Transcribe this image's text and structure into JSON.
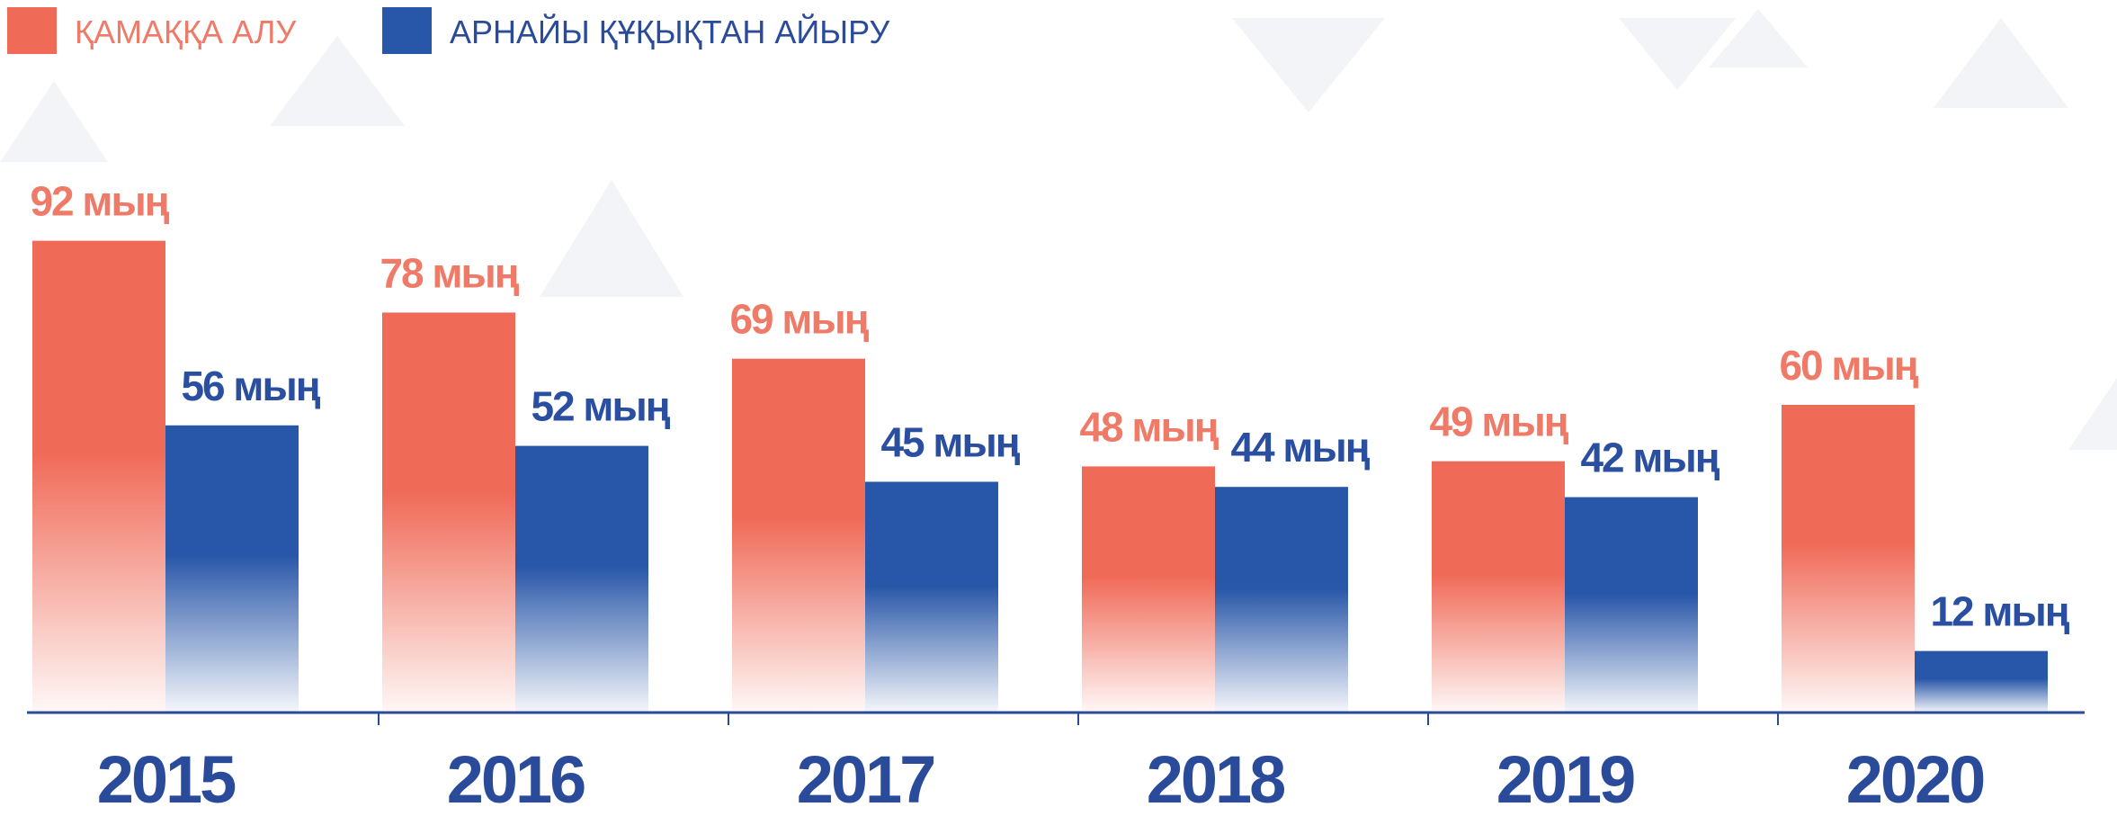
{
  "chart_data": {
    "type": "bar",
    "categories": [
      "2015",
      "2016",
      "2017",
      "2018",
      "2019",
      "2020"
    ],
    "series": [
      {
        "name": "ҚАМАҚҚА АЛУ",
        "color": "#f06a58",
        "values": [
          92,
          78,
          69,
          48,
          49,
          60
        ],
        "value_labels": [
          "92 мың",
          "78 мың",
          "69 мың",
          "48 мың",
          "49 мың",
          "60 мың"
        ]
      },
      {
        "name": "АРНАЙЫ ҚҰҚЫҚТАН АЙЫРУ",
        "color": "#2856a8",
        "values": [
          56,
          52,
          45,
          44,
          42,
          12
        ],
        "value_labels": [
          "56 мың",
          "52 мың",
          "45 мың",
          "44 мың",
          "42 мың",
          "12 мың"
        ]
      }
    ]
  }
}
